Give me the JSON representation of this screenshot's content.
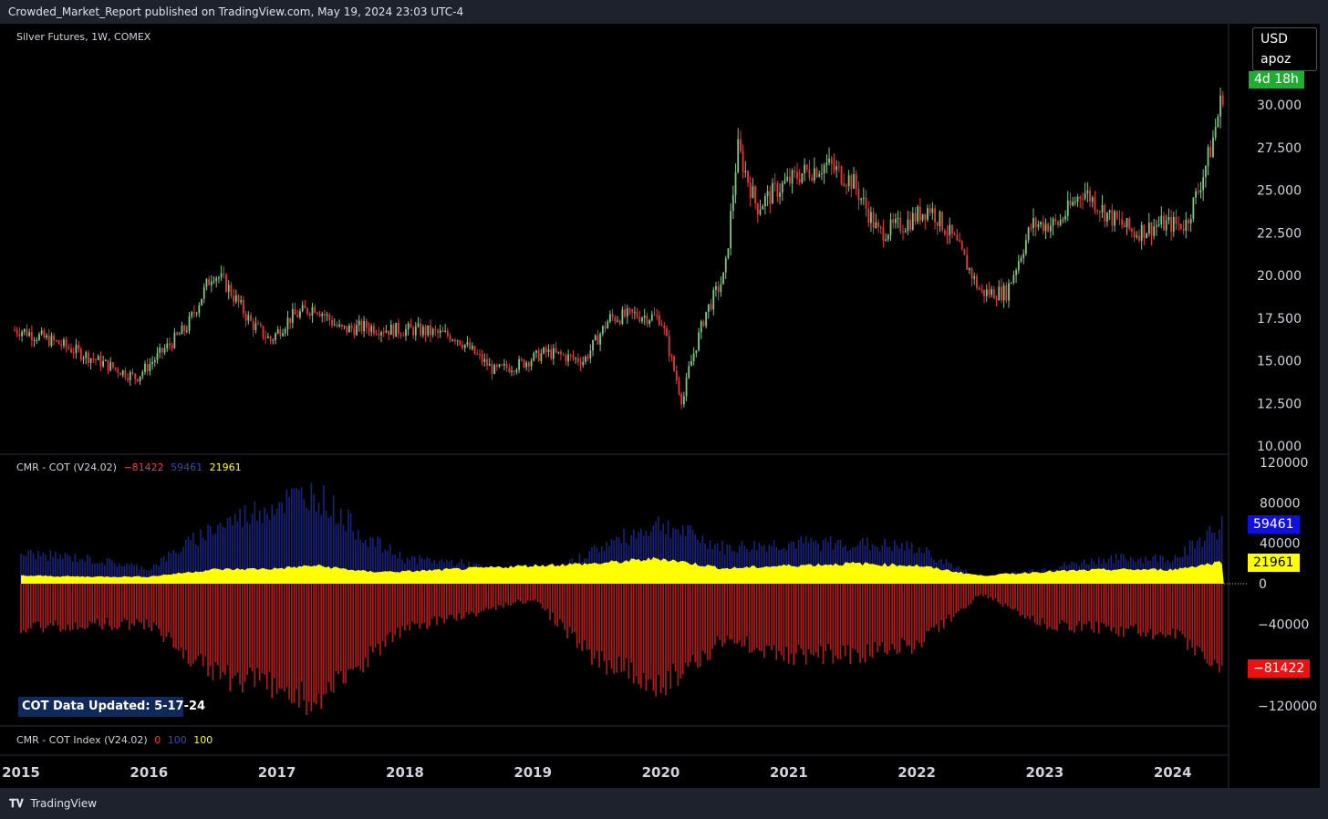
{
  "header": {
    "published": "Crowded_Market_Report published on TradingView.com, May 19, 2024 23:03 UTC-4"
  },
  "footer": {
    "brand": "TradingView",
    "brand_icon": "tradingview-logo-icon"
  },
  "main_pane": {
    "symbol_label": "Silver Futures, 1W, COMEX",
    "currency": "USD",
    "unit": "apoz",
    "countdown": "4d 18h",
    "countdown_color": "#089981"
  },
  "cot_pane": {
    "title": "CMR - COT (V24.02)",
    "v_red": "−81422",
    "v_blue": "59461",
    "v_yellow": "21961",
    "tag_blue": "59461",
    "tag_yellow": "21961",
    "tag_red": "−81422",
    "updated_label": "COT Data Updated:  5-17-24"
  },
  "index_pane": {
    "title": "CMR - COT Index (V24.02)",
    "v_red": "0",
    "v_blue": "100",
    "v_yellow": "100"
  },
  "colors": {
    "up": "#81c784",
    "down": "#e53935",
    "blue": "#1a237e",
    "red_bar": "#b71c1c",
    "yellow": "#ffff00"
  },
  "chart_data": [
    {
      "type": "candlestick",
      "title": "Silver Futures, 1W, COMEX",
      "unit": "USD / apoz",
      "ylim": [
        10,
        35
      ],
      "yticks": [
        "10.000",
        "12.500",
        "15.000",
        "17.500",
        "20.000",
        "22.500",
        "25.000",
        "27.500",
        "30.000"
      ],
      "xticks": [
        "2015",
        "2016",
        "2017",
        "2018",
        "2019",
        "2020",
        "2021",
        "2022",
        "2023",
        "2024"
      ],
      "x": [
        2015.0,
        2015.3,
        2015.6,
        2015.9,
        2016.1,
        2016.3,
        2016.5,
        2016.6,
        2016.8,
        2016.95,
        2017.1,
        2017.3,
        2017.5,
        2017.7,
        2017.9,
        2018.1,
        2018.4,
        2018.7,
        2018.9,
        2019.1,
        2019.4,
        2019.6,
        2019.8,
        2020.0,
        2020.17,
        2020.22,
        2020.35,
        2020.5,
        2020.6,
        2020.75,
        2020.9,
        2021.1,
        2021.3,
        2021.5,
        2021.7,
        2021.9,
        2022.1,
        2022.3,
        2022.5,
        2022.7,
        2022.9,
        2023.1,
        2023.3,
        2023.5,
        2023.7,
        2023.9,
        2024.1,
        2024.2,
        2024.3,
        2024.4
      ],
      "close": [
        16.8,
        16.0,
        15.0,
        14.0,
        15.5,
        17.0,
        20.2,
        19.5,
        17.2,
        16.2,
        17.5,
        18.2,
        16.8,
        17.0,
        16.8,
        16.8,
        16.4,
        14.4,
        14.8,
        15.5,
        15.0,
        17.5,
        17.7,
        17.5,
        12.5,
        14.5,
        17.8,
        20.0,
        27.5,
        24.0,
        25.0,
        26.0,
        26.5,
        25.5,
        22.5,
        23.0,
        24.0,
        22.0,
        19.0,
        19.0,
        23.0,
        23.0,
        25.0,
        23.5,
        22.5,
        23.0,
        23.0,
        25.0,
        27.5,
        31.0
      ]
    },
    {
      "type": "bar",
      "title": "CMR - COT (V24.02)",
      "ylim": [
        -120000,
        120000
      ],
      "yticks": [
        "−120000",
        "−40000",
        "0",
        "40000",
        "80000",
        "120000"
      ],
      "series": [
        {
          "name": "blue",
          "last": 59461,
          "x": [
            2015.0,
            2015.5,
            2016.0,
            2016.5,
            2017.0,
            2017.3,
            2017.7,
            2018.0,
            2018.5,
            2019.0,
            2019.5,
            2020.0,
            2020.5,
            2021.0,
            2021.5,
            2022.0,
            2022.5,
            2023.0,
            2023.5,
            2024.0,
            2024.4
          ],
          "values": [
            30000,
            25000,
            15000,
            55000,
            80000,
            90000,
            45000,
            25000,
            20000,
            0,
            35000,
            60000,
            35000,
            40000,
            40000,
            35000,
            5000,
            15000,
            25000,
            25000,
            59461
          ]
        },
        {
          "name": "red",
          "last": -81422,
          "x": [
            2015.0,
            2015.5,
            2016.0,
            2016.5,
            2017.0,
            2017.3,
            2017.7,
            2018.0,
            2018.5,
            2019.0,
            2019.5,
            2020.0,
            2020.5,
            2021.0,
            2021.5,
            2022.0,
            2022.5,
            2023.0,
            2023.5,
            2024.0,
            2024.4
          ],
          "values": [
            -45000,
            -40000,
            -40000,
            -90000,
            -100000,
            -120000,
            -75000,
            -45000,
            -30000,
            -15000,
            -75000,
            -100000,
            -55000,
            -70000,
            -70000,
            -60000,
            -10000,
            -40000,
            -45000,
            -50000,
            -81422
          ]
        },
        {
          "name": "yellow",
          "last": 21961,
          "x": [
            2015.0,
            2015.5,
            2016.0,
            2016.5,
            2017.0,
            2017.3,
            2017.7,
            2018.0,
            2018.5,
            2019.0,
            2019.5,
            2020.0,
            2020.5,
            2021.0,
            2021.5,
            2022.0,
            2022.5,
            2023.0,
            2023.5,
            2024.0,
            2024.4
          ],
          "values": [
            8000,
            7000,
            7000,
            14000,
            15000,
            18000,
            12000,
            12000,
            15000,
            18000,
            20000,
            25000,
            15000,
            18000,
            20000,
            18000,
            8000,
            12000,
            14000,
            14000,
            21961
          ]
        }
      ]
    }
  ]
}
